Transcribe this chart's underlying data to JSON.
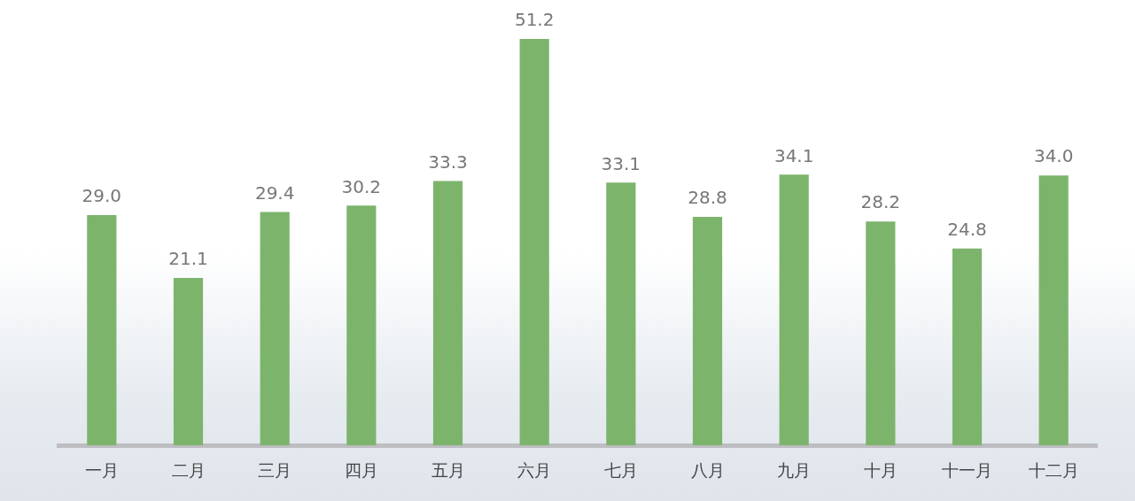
{
  "chart_data": {
    "type": "bar",
    "categories": [
      "一月",
      "二月",
      "三月",
      "四月",
      "五月",
      "六月",
      "七月",
      "八月",
      "九月",
      "十月",
      "十一月",
      "十二月"
    ],
    "values": [
      29.0,
      21.1,
      29.4,
      30.2,
      33.3,
      51.2,
      33.1,
      28.8,
      34.1,
      28.2,
      24.8,
      34.0
    ],
    "value_labels": [
      "29.0",
      "21.1",
      "29.4",
      "30.2",
      "33.3",
      "51.2",
      "33.1",
      "28.8",
      "34.1",
      "28.2",
      "24.8",
      "34.0"
    ],
    "color": "#7db46c",
    "grid": false,
    "legend": false
  }
}
